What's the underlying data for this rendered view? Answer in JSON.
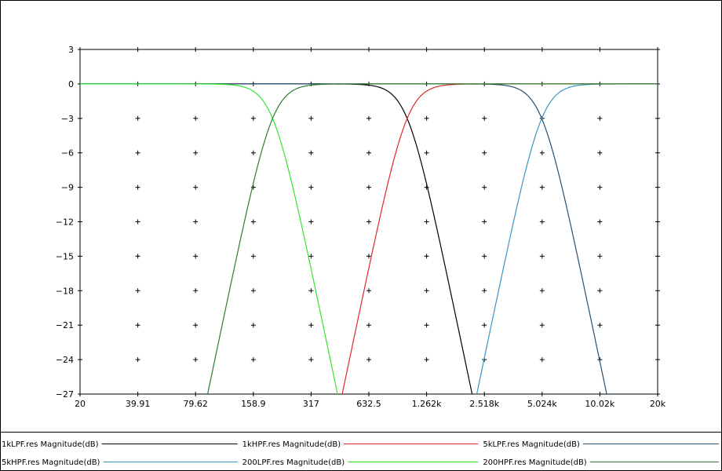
{
  "chart_data": {
    "type": "line",
    "title": "",
    "xlabel": "",
    "ylabel": "",
    "xscale": "log",
    "xlim": [
      20,
      20000
    ],
    "ylim": [
      -27,
      3
    ],
    "xticks": [
      20,
      39.91,
      79.62,
      158.9,
      317,
      632.5,
      1262,
      2518,
      5024,
      10020,
      20000
    ],
    "xtick_labels": [
      "20",
      "39.91",
      "79.62",
      "158.9",
      "317",
      "632.5",
      "1.262k",
      "2.518k",
      "5.024k",
      "10.02k",
      "20k"
    ],
    "yticks": [
      3,
      0,
      -3,
      -6,
      -9,
      -12,
      -15,
      -18,
      -21,
      -24,
      -27
    ],
    "ytick_labels": [
      "3",
      "0",
      "−3",
      "−6",
      "−9",
      "−12",
      "−15",
      "−18",
      "−21",
      "−24",
      "−27"
    ],
    "grid": "cross-marks",
    "legend_position": "bottom",
    "series": [
      {
        "name": "1kLPF.res Magnitude(dB)",
        "color": "#000000",
        "kind": "lowpass",
        "fc": 1000
      },
      {
        "name": "1kHPF.res Magnitude(dB)",
        "color": "#e0282a",
        "kind": "highpass",
        "fc": 1000
      },
      {
        "name": "5kLPF.res Magnitude(dB)",
        "color": "#2a4f6f",
        "kind": "lowpass",
        "fc": 5000
      },
      {
        "name": "5kHPF.res Magnitude(dB)",
        "color": "#3a96c8",
        "kind": "highpass",
        "fc": 5000
      },
      {
        "name": "200LPF.res Magnitude(dB)",
        "color": "#33e633",
        "kind": "lowpass",
        "fc": 200
      },
      {
        "name": "200HPF.res Magnitude(dB)",
        "color": "#2e7d32",
        "kind": "highpass",
        "fc": 200
      }
    ]
  }
}
